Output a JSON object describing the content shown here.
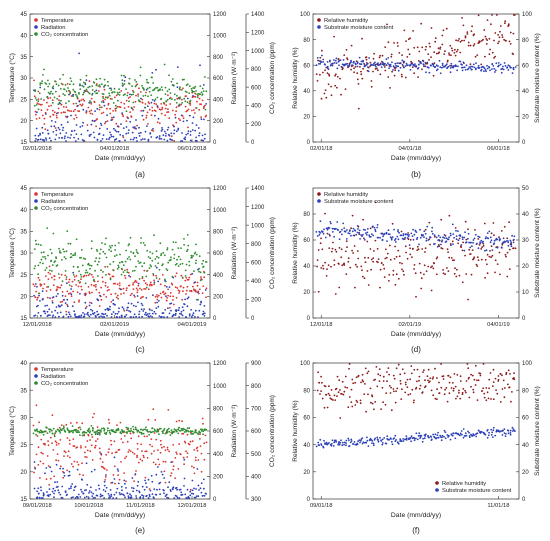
{
  "chart_data": [
    {
      "type": "scatter",
      "panel_label": "(a)",
      "xlabel": "Date (mm/dd/yy)",
      "ylabel_left": "Temperature (°C)",
      "ylabel_right1": "Radiation (W·m⁻²)",
      "ylabel_right2": "CO₂ concentration (ppm)",
      "x_ticks": [
        "02/01/2018",
        "04/01/2018",
        "06/01/2018"
      ],
      "ylim_left": [
        15,
        45
      ],
      "yticks_left": [
        15,
        20,
        25,
        30,
        35,
        40,
        45
      ],
      "ylim_right1": [
        0,
        1200
      ],
      "yticks_right1": [
        0,
        200,
        400,
        600,
        800,
        1000,
        1200
      ],
      "ylim_right2": [
        0,
        1400
      ],
      "yticks_right2": [
        0,
        200,
        400,
        600,
        800,
        1000,
        1200,
        1400
      ],
      "legend": [
        "Temperature",
        "Radiation",
        "CO₂ concentration"
      ],
      "series": [
        {
          "name": "Temperature",
          "color": "#d9352f",
          "axis": "left",
          "mean": 23,
          "spread": 2.5
        },
        {
          "name": "Radiation",
          "color": "#2b3fb8",
          "axis": "right1",
          "mean": 150,
          "spread": 250
        },
        {
          "name": "CO₂ concentration",
          "color": "#2e8b2e",
          "axis": "right2",
          "mean": 560,
          "spread": 90
        }
      ]
    },
    {
      "type": "scatter",
      "panel_label": "(b)",
      "xlabel": "Date (mm/dd/yy)",
      "ylabel_left": "Relative humidity (%)",
      "ylabel_right": "Substrate moisture content (%)",
      "x_ticks": [
        "02/01/18",
        "04/01/18",
        "06/01/18"
      ],
      "ylim_left": [
        0,
        100
      ],
      "yticks_left": [
        0,
        20,
        40,
        60,
        80,
        100
      ],
      "ylim_right": [
        0,
        100
      ],
      "yticks_right": [
        0,
        20,
        40,
        60,
        80,
        100
      ],
      "legend": [
        "Relative humidity",
        "Substrate moisture content"
      ],
      "series": [
        {
          "name": "Relative humidity",
          "color": "#8b1a1a",
          "axis": "left",
          "start": 50,
          "end": 85,
          "spread": 10
        },
        {
          "name": "Substrate moisture content",
          "color": "#2b3fb8",
          "axis": "right",
          "start": 62,
          "end": 58,
          "spread": 2
        }
      ]
    },
    {
      "type": "scatter",
      "panel_label": "(c)",
      "xlabel": "Date (mm/dd/yy)",
      "ylabel_left": "Temperature (°C)",
      "ylabel_right1": "Radiation (W·m⁻²)",
      "ylabel_right2": "CO₂ concentration (ppm)",
      "x_ticks": [
        "12/01/2018",
        "02/01/2019",
        "04/01/2019"
      ],
      "ylim_left": [
        15,
        45
      ],
      "yticks_left": [
        15,
        20,
        25,
        30,
        35,
        40,
        45
      ],
      "ylim_right1": [
        0,
        1200
      ],
      "yticks_right1": [
        0,
        200,
        400,
        600,
        800,
        1000,
        1200
      ],
      "ylim_right2": [
        0,
        1400
      ],
      "yticks_right2": [
        0,
        200,
        400,
        600,
        800,
        1000,
        1200,
        1400
      ],
      "legend": [
        "Temperature",
        "Radiation",
        "CO₂ concentration"
      ],
      "series": [
        {
          "name": "Temperature",
          "color": "#d9352f",
          "axis": "left",
          "mean": 22,
          "spread": 2
        },
        {
          "name": "Radiation",
          "color": "#2b3fb8",
          "axis": "right1",
          "mean": 80,
          "spread": 180
        },
        {
          "name": "CO₂ concentration",
          "color": "#2e8b2e",
          "axis": "right2",
          "mean": 620,
          "spread": 120
        }
      ]
    },
    {
      "type": "scatter",
      "panel_label": "(d)",
      "xlabel": "Date (mm/dd/yy)",
      "ylabel_left": "Relative humidity (%)",
      "ylabel_right": "Substrate moisture content (%)",
      "x_ticks": [
        "12/01/18",
        "02/01/19",
        "04/01/19"
      ],
      "ylim_left": [
        0,
        100
      ],
      "yticks_left": [
        0,
        20,
        40,
        60,
        80
      ],
      "ylim_right": [
        0,
        50
      ],
      "yticks_right": [
        0,
        10,
        20,
        30,
        40,
        50
      ],
      "legend": [
        "Relative humidity",
        "Substrate moisture content"
      ],
      "series": [
        {
          "name": "Relative humidity",
          "color": "#8b1a1a",
          "axis": "left",
          "start": 45,
          "end": 50,
          "spread": 12
        },
        {
          "name": "Substrate moisture content",
          "color": "#2b3fb8",
          "axis": "right",
          "start": 34,
          "end": 29,
          "spread": 1.5
        }
      ]
    },
    {
      "type": "scatter",
      "panel_label": "(e)",
      "xlabel": "Date (mm/dd/yy)",
      "ylabel_left": "Temperature (°C)",
      "ylabel_right1": "Radiation (W·m⁻²)",
      "ylabel_right2": "CO₂ concentration (ppm)",
      "x_ticks": [
        "09/01/2018",
        "10/01/2018",
        "11/01/2018",
        "12/01/2018"
      ],
      "ylim_left": [
        15,
        40
      ],
      "yticks_left": [
        15,
        20,
        25,
        30,
        35,
        40
      ],
      "ylim_right1": [
        0,
        1200
      ],
      "yticks_right1": [
        0,
        200,
        400,
        600,
        800,
        1000,
        1200
      ],
      "ylim_right2": [
        300,
        900
      ],
      "yticks_right2": [
        300,
        400,
        500,
        600,
        700,
        800,
        900
      ],
      "legend": [
        "Temperature",
        "Radiation",
        "CO₂ concentration"
      ],
      "series": [
        {
          "name": "Temperature",
          "color": "#d9352f",
          "axis": "left",
          "mean": 24,
          "spread": 3
        },
        {
          "name": "Radiation",
          "color": "#2b3fb8",
          "axis": "right1",
          "mean": 120,
          "spread": 150
        },
        {
          "name": "CO₂ concentration",
          "color": "#2e8b2e",
          "axis": "right2",
          "mean": 600,
          "spread": 8
        }
      ]
    },
    {
      "type": "scatter",
      "panel_label": "(f)",
      "xlabel": "Date (mm/dd/yy)",
      "ylabel_left": "Relative humidity (%)",
      "ylabel_right": "Substrate moisture content (%)",
      "x_ticks": [
        "09/01/18",
        "11/01/18"
      ],
      "ylim_left": [
        0,
        100
      ],
      "yticks_left": [
        0,
        20,
        40,
        60,
        80,
        100
      ],
      "ylim_right": [
        0,
        100
      ],
      "yticks_right": [
        0,
        20,
        40,
        60,
        80,
        100
      ],
      "legend": [
        "Relative humidity",
        "Substrate moisture content"
      ],
      "series": [
        {
          "name": "Relative humidity",
          "color": "#8b1a1a",
          "axis": "left",
          "start": 80,
          "end": 85,
          "spread": 8
        },
        {
          "name": "Substrate moisture content",
          "color": "#2b3fb8",
          "axis": "right",
          "start": 40,
          "end": 50,
          "spread": 1.5
        }
      ]
    }
  ]
}
